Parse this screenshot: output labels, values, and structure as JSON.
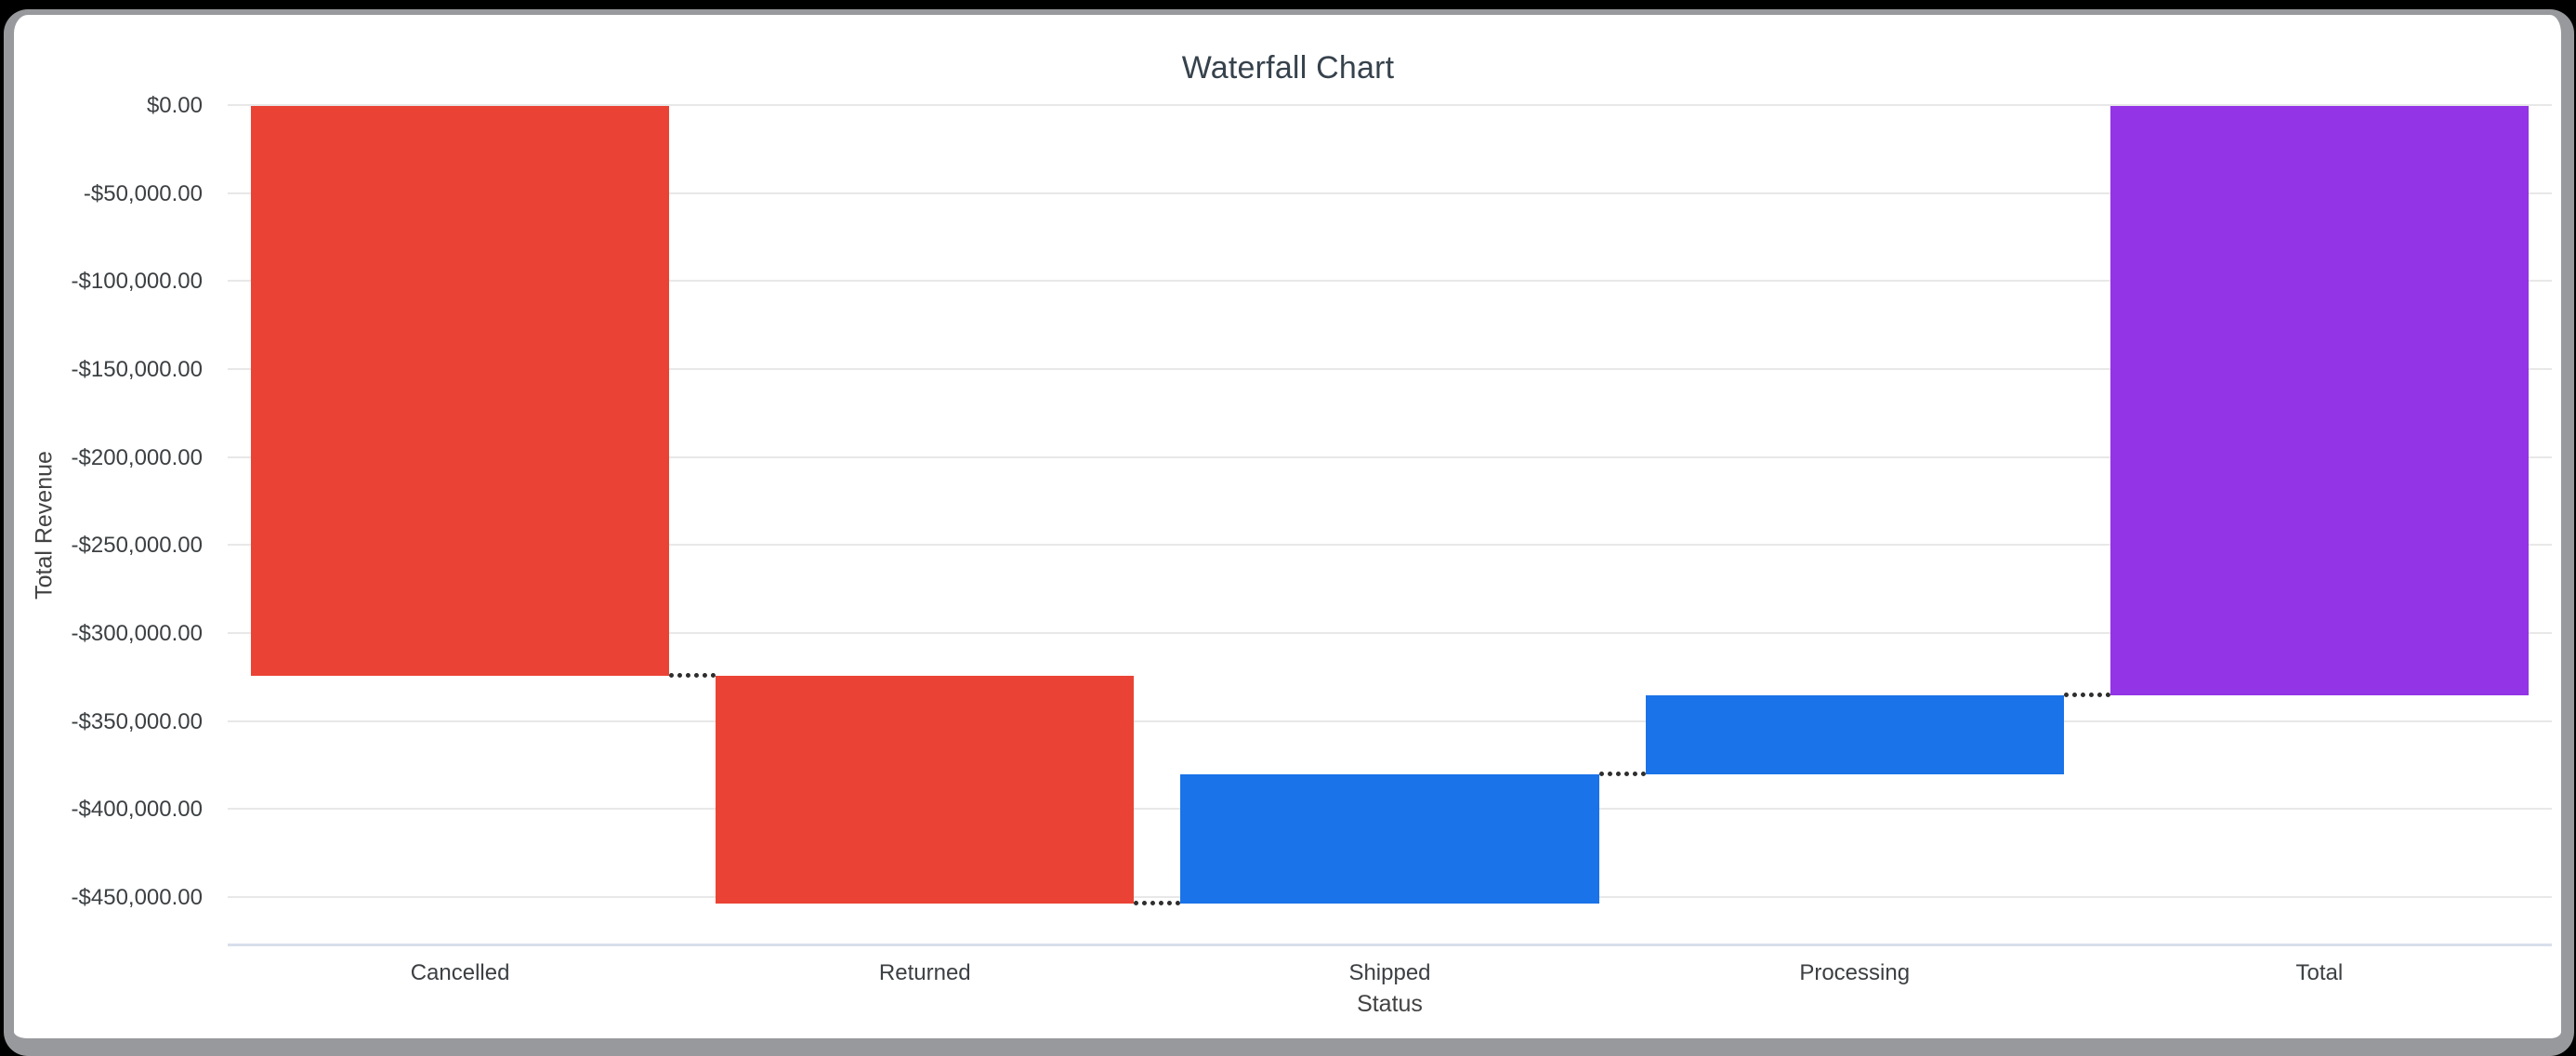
{
  "window": {
    "backdrop_color": "#000000",
    "frame_color": "#97999c",
    "content_background": "#ffffff"
  },
  "chart_data": {
    "type": "bar",
    "subtype": "waterfall",
    "title": "Waterfall Chart",
    "xlabel": "Status",
    "ylabel": "Total Revenue",
    "categories": [
      "Cancelled",
      "Returned",
      "Shipped",
      "Processing",
      "Total"
    ],
    "bars": [
      {
        "category": "Cancelled",
        "start": 0,
        "end": -324000,
        "value": -324000,
        "kind": "decrease"
      },
      {
        "category": "Returned",
        "start": -324000,
        "end": -453300,
        "value": -129300,
        "kind": "decrease"
      },
      {
        "category": "Shipped",
        "start": -453300,
        "end": -380000,
        "value": 73300,
        "kind": "increase"
      },
      {
        "category": "Processing",
        "start": -380000,
        "end": -334700,
        "value": 45300,
        "kind": "increase"
      },
      {
        "category": "Total",
        "start": 0,
        "end": -334700,
        "value": -334700,
        "kind": "total"
      }
    ],
    "colors": {
      "decrease": "#ea4335",
      "increase": "#1a73e8",
      "total": "#9334e6",
      "gridline": "#e8e8e8",
      "axis_line": "#d8dfeb",
      "connector": "#2e2e2e",
      "title_text": "#36424c",
      "tick_text": "#3c4043"
    },
    "y_axis": {
      "max": 0,
      "min": -477000,
      "tick_step": -50000,
      "tick_values": [
        0,
        -50000,
        -100000,
        -150000,
        -200000,
        -250000,
        -300000,
        -350000,
        -400000,
        -450000
      ],
      "tick_labels": [
        "$0.00",
        "-$50,000.00",
        "-$100,000.00",
        "-$150,000.00",
        "-$200,000.00",
        "-$250,000.00",
        "-$300,000.00",
        "-$350,000.00",
        "-$400,000.00",
        "-$450,000.00"
      ]
    },
    "x_axis": {
      "labels": [
        "Cancelled",
        "Returned",
        "Shipped",
        "Processing",
        "Total"
      ]
    },
    "grid": true,
    "legend": false,
    "connectors": "dotted"
  }
}
